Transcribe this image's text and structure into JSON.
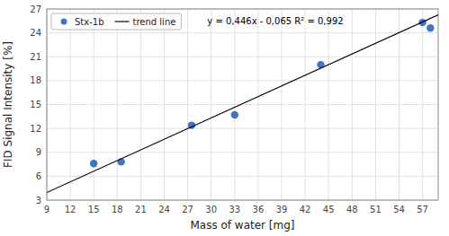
{
  "chart_data": {
    "type": "scatter",
    "xlabel": "Mass of water [mg]",
    "ylabel": "FID Signal Intensity [%]",
    "series": [
      {
        "name": "Stx-1b",
        "type": "scatter",
        "marker": "circle",
        "color": "#4472c4",
        "x": [
          15,
          18.5,
          27.5,
          33,
          44,
          57,
          58
        ],
        "values": [
          7.6,
          7.8,
          12.4,
          13.7,
          20.0,
          25.3,
          24.6
        ]
      },
      {
        "name": "trend line",
        "type": "line",
        "line_style": "solid",
        "color": "#000000",
        "x": [
          9,
          59
        ],
        "values": [
          3.949,
          26.249
        ]
      }
    ],
    "annotation": "y = 0,446x - 0,065   R² = 0,992",
    "xlim": [
      9,
      59
    ],
    "ylim": [
      3,
      27
    ],
    "xticks": [
      9,
      12,
      15,
      18,
      21,
      24,
      27,
      30,
      33,
      36,
      39,
      42,
      45,
      48,
      51,
      54,
      57
    ],
    "yticks": [
      3,
      6,
      9,
      12,
      15,
      18,
      21,
      24,
      27
    ],
    "grid": true,
    "legend": "upper left"
  }
}
